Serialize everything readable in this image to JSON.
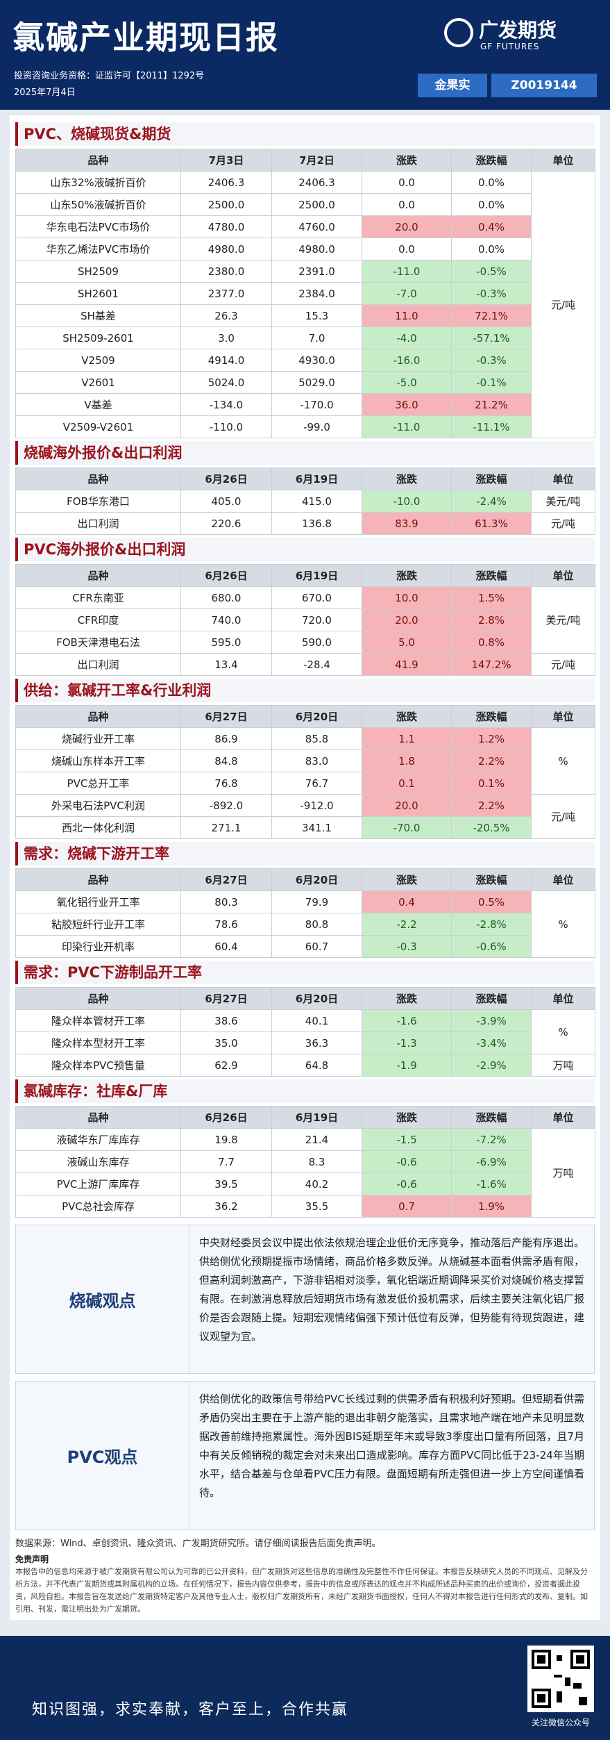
{
  "header": {
    "title": "氯碱产业期现日报",
    "qualification": "投资咨询业务资格：证监许可【2011】1292号",
    "date": "2025年7月4日",
    "logo_cn": "广发期货",
    "logo_en": "GF FUTURES",
    "analyst_name": "金果实",
    "analyst_id": "Z0019144"
  },
  "sections": [
    {
      "title": "PVC、烧碱现货&期货",
      "columns": [
        "品种",
        "7月3日",
        "7月2日",
        "涨跌",
        "涨跌幅",
        "单位"
      ],
      "rows": [
        [
          "山东32%液碱折百价",
          "2406.3",
          "2406.3",
          "0.0",
          "0.0%"
        ],
        [
          "山东50%液碱折百价",
          "2500.0",
          "2500.0",
          "0.0",
          "0.0%"
        ],
        [
          "华东电石法PVC市场价",
          "4780.0",
          "4760.0",
          "20.0",
          "0.4%"
        ],
        [
          "华东乙烯法PVC市场价",
          "4980.0",
          "4980.0",
          "0.0",
          "0.0%"
        ],
        [
          "SH2509",
          "2380.0",
          "2391.0",
          "-11.0",
          "-0.5%"
        ],
        [
          "SH2601",
          "2377.0",
          "2384.0",
          "-7.0",
          "-0.3%"
        ],
        [
          "SH基差",
          "26.3",
          "15.3",
          "11.0",
          "72.1%"
        ],
        [
          "SH2509-2601",
          "3.0",
          "7.0",
          "-4.0",
          "-57.1%"
        ],
        [
          "V2509",
          "4914.0",
          "4930.0",
          "-16.0",
          "-0.3%"
        ],
        [
          "V2601",
          "5024.0",
          "5029.0",
          "-5.0",
          "-0.1%"
        ],
        [
          "V基差",
          "-134.0",
          "-170.0",
          "36.0",
          "21.2%"
        ],
        [
          "V2509-V2601",
          "-110.0",
          "-99.0",
          "-11.0",
          "-11.1%"
        ]
      ],
      "units": [
        "元/吨",
        null,
        null,
        null,
        null,
        null,
        null,
        null,
        null,
        null,
        null,
        null
      ]
    },
    {
      "title": "烧碱海外报价&出口利润",
      "columns": [
        "品种",
        "6月26日",
        "6月19日",
        "涨跌",
        "涨跌幅",
        "单位"
      ],
      "rows": [
        [
          "FOB华东港口",
          "405.0",
          "415.0",
          "-10.0",
          "-2.4%"
        ],
        [
          "出口利润",
          "220.6",
          "136.8",
          "83.9",
          "61.3%"
        ]
      ],
      "units": [
        "美元/吨",
        "元/吨"
      ]
    },
    {
      "title": "PVC海外报价&出口利润",
      "columns": [
        "品种",
        "6月26日",
        "6月19日",
        "涨跌",
        "涨跌幅",
        "单位"
      ],
      "rows": [
        [
          "CFR东南亚",
          "680.0",
          "670.0",
          "10.0",
          "1.5%"
        ],
        [
          "CFR印度",
          "740.0",
          "720.0",
          "20.0",
          "2.8%"
        ],
        [
          "FOB天津港电石法",
          "595.0",
          "590.0",
          "5.0",
          "0.8%"
        ],
        [
          "出口利润",
          "13.4",
          "-28.4",
          "41.9",
          "147.2%"
        ]
      ],
      "units": [
        "美元/吨",
        null,
        null,
        "元/吨"
      ]
    },
    {
      "title": "供给：氯碱开工率&行业利润",
      "columns": [
        "品种",
        "6月27日",
        "6月20日",
        "涨跌",
        "涨跌幅",
        "单位"
      ],
      "rows": [
        [
          "烧碱行业开工率",
          "86.9",
          "85.8",
          "1.1",
          "1.2%"
        ],
        [
          "烧碱山东样本开工率",
          "84.8",
          "83.0",
          "1.8",
          "2.2%"
        ],
        [
          "PVC总开工率",
          "76.8",
          "76.7",
          "0.1",
          "0.1%"
        ],
        [
          "外采电石法PVC利润",
          "-892.0",
          "-912.0",
          "20.0",
          "2.2%"
        ],
        [
          "西北一体化利润",
          "271.1",
          "341.1",
          "-70.0",
          "-20.5%"
        ]
      ],
      "units": [
        "%",
        null,
        null,
        "元/吨",
        null
      ]
    },
    {
      "title": "需求：烧碱下游开工率",
      "columns": [
        "品种",
        "6月27日",
        "6月20日",
        "涨跌",
        "涨跌幅",
        "单位"
      ],
      "rows": [
        [
          "氧化铝行业开工率",
          "80.3",
          "79.9",
          "0.4",
          "0.5%"
        ],
        [
          "粘胶短纤行业开工率",
          "78.6",
          "80.8",
          "-2.2",
          "-2.8%"
        ],
        [
          "印染行业开机率",
          "60.4",
          "60.7",
          "-0.3",
          "-0.6%"
        ]
      ],
      "units": [
        "%",
        null,
        null
      ]
    },
    {
      "title": "需求：PVC下游制品开工率",
      "columns": [
        "品种",
        "6月27日",
        "6月20日",
        "涨跌",
        "涨跌幅",
        "单位"
      ],
      "rows": [
        [
          "隆众样本管材开工率",
          "38.6",
          "40.1",
          "-1.6",
          "-3.9%"
        ],
        [
          "隆众样本型材开工率",
          "35.0",
          "36.3",
          "-1.3",
          "-3.4%"
        ],
        [
          "隆众样本PVC预售量",
          "62.9",
          "64.8",
          "-1.9",
          "-2.9%"
        ]
      ],
      "units": [
        "%",
        null,
        "万吨"
      ]
    },
    {
      "title": "氯碱库存：社库&厂库",
      "columns": [
        "品种",
        "6月26日",
        "6月19日",
        "涨跌",
        "涨跌幅",
        "单位"
      ],
      "rows": [
        [
          "液碱华东厂库库存",
          "19.8",
          "21.4",
          "-1.5",
          "-7.2%"
        ],
        [
          "液碱山东库存",
          "7.7",
          "8.3",
          "-0.6",
          "-6.9%"
        ],
        [
          "PVC上游厂库库存",
          "39.5",
          "40.2",
          "-0.6",
          "-1.6%"
        ],
        [
          "PVC总社会库存",
          "36.2",
          "35.5",
          "0.7",
          "1.9%"
        ]
      ],
      "units": [
        "万吨",
        null,
        null,
        null
      ]
    }
  ],
  "opinions": [
    {
      "label": "烧碱观点",
      "text": "中央财经委员会议中提出依法依规治理企业低价无序竞争，推动落后产能有序退出。供给侧优化预期提振市场情绪，商品价格多数反弹。从烧碱基本面看供需矛盾有限，但高利润刺激高产，下游非铝相对淡季，氧化铝端近期调降采买价对烧碱价格支撑暂有限。在刺激消息释放后短期货市场有激发低价投机需求，后续主要关注氧化铝厂报价是否会跟随上提。短期宏观情绪偏强下预计低位有反弹，但势能有待现货跟进，建议观望为宜。"
    },
    {
      "label": "PVC观点",
      "text": "供给侧优化的政策信号带给PVC长线过剩的供需矛盾有积极利好预期。但短期看供需矛盾仍突出主要在于上游产能的退出非朝夕能落实，且需求地产端在地产未见明显数据改善前维持拖累属性。海外因BIS延期至年末或导致3季度出口量有所回落，且7月中有关反倾销税的裁定会对未来出口造成影响。库存方面PVC同比低于23-24年当期水平，结合基差与仓单看PVC压力有限。盘面短期有所走强但进一步上方空间谨慎看待。"
    }
  ],
  "source": "数据来源：Wind、卓创资讯、隆众资讯、广发期货研究所。请仔细阅读报告后面免责声明。",
  "disclaimer": {
    "title": "免责声明",
    "text": "本报告中的信息均来源于被广发期货有限公司认为可靠的已公开资料，但广发期货对这些信息的准确性及完整性不作任何保证。本报告反映研究人员的不同观点、见解及分析方法，并不代表广发期货或其附属机构的立场。在任何情况下，报告内容仅供参考，报告中的信息或所表达的观点并不构成所述品种买卖的出价或询价，投资者据此投资，风险自担。本报告旨在发送给广发期货特定客户及其他专业人士，版权归广发期货所有，未经广发期货书面授权，任何人不得对本报告进行任何形式的发布、复制。如引用、刊发，需注明出处为广发期货。"
  },
  "footer": {
    "slogan": "知识图强，求实奉献，客户至上，合作共赢",
    "qr_caption": "关注微信公众号"
  }
}
